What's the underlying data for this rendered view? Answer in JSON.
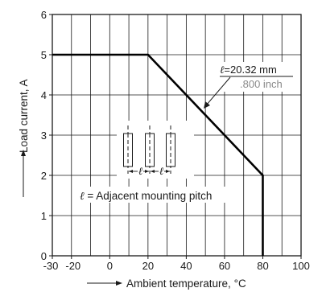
{
  "chart_data": {
    "type": "line",
    "title": "",
    "xlabel": "Ambient temperature, °C",
    "ylabel": "Load current, A",
    "xlim": [
      -30,
      100
    ],
    "ylim": [
      0,
      6
    ],
    "x_ticks": [
      "-30",
      "-20",
      "0",
      "20",
      "40",
      "60",
      "80",
      "100"
    ],
    "x_tick_values": [
      -30,
      -20,
      0,
      20,
      40,
      60,
      80,
      100
    ],
    "y_ticks": [
      "0",
      "1",
      "2",
      "3",
      "4",
      "5",
      "6"
    ],
    "y_tick_values": [
      0,
      1,
      2,
      3,
      4,
      5,
      6
    ],
    "grid": true,
    "series": [
      {
        "x": [
          -30,
          20,
          80,
          80
        ],
        "y": [
          5,
          5,
          2,
          0
        ]
      }
    ],
    "annotations": {
      "pitch_mm_prefix": "ℓ",
      "pitch_mm_value": "=20.32 mm",
      "pitch_inch": ".800 inch",
      "pitch_note_prefix": "ℓ",
      "pitch_note_text": " = Adjacent mounting pitch",
      "dimension_symbol": "ℓ"
    }
  },
  "colors": {
    "axis": "#1a1a1a",
    "grid": "#1a1a1a",
    "curve": "#000000",
    "gray_text": "#8a8a8a"
  }
}
